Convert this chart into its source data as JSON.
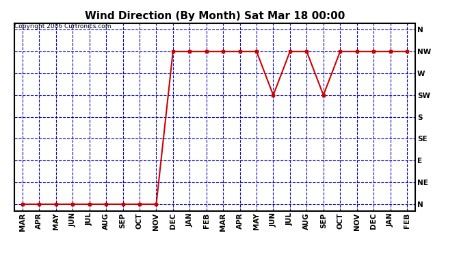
{
  "title": "Wind Direction (By Month) Sat Mar 18 00:00",
  "copyright": "Copyright 2006 Curtronics.com",
  "x_labels": [
    "MAR",
    "APR",
    "MAY",
    "JUN",
    "JUL",
    "AUG",
    "SEP",
    "OCT",
    "NOV",
    "DEC",
    "JAN",
    "FEB",
    "MAR",
    "APR",
    "MAY",
    "JUN",
    "JUL",
    "AUG",
    "SEP",
    "OCT",
    "NOV",
    "DEC",
    "JAN",
    "FEB"
  ],
  "y_labels": [
    "N",
    "NE",
    "E",
    "SE",
    "S",
    "SW",
    "W",
    "NW",
    "N"
  ],
  "y_values": [
    0,
    1,
    2,
    3,
    4,
    5,
    6,
    7,
    8
  ],
  "data_y": [
    0,
    0,
    0,
    0,
    0,
    0,
    0,
    0,
    0,
    7,
    7,
    7,
    7,
    7,
    7,
    5,
    7,
    7,
    5,
    7,
    7,
    7,
    7,
    7
  ],
  "line_color": "#cc0000",
  "marker": "s",
  "marker_size": 3,
  "bg_color": "#ffffff",
  "grid_color": "#0000bb",
  "axis_color": "#000000",
  "title_fontsize": 11,
  "tick_fontsize": 7.5,
  "copyright_fontsize": 6.5
}
